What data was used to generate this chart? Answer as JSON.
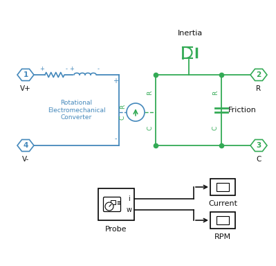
{
  "bg_color": "#ffffff",
  "blue": "#4488bb",
  "green": "#33aa55",
  "dark": "#111111",
  "inertia_label": "Inertia",
  "friction_label": "Friction",
  "probe_label": "Probe",
  "current_label": "Current",
  "rpm_label": "RPM",
  "converter_label": "Rotational\nElectromechanical\nConverter",
  "figw": 3.99,
  "figh": 3.84,
  "dpi": 100
}
